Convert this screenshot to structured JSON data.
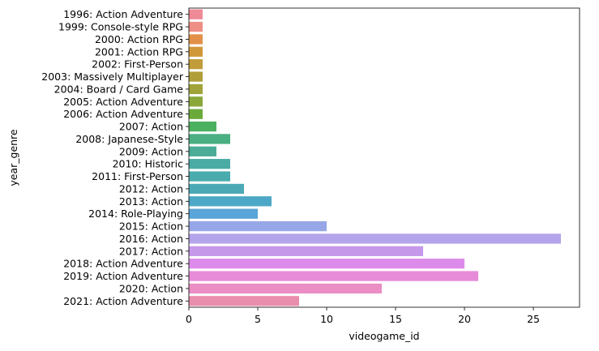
{
  "chart_data": {
    "type": "bar",
    "orientation": "horizontal",
    "title": "",
    "xlabel": "videogame_id",
    "ylabel": "year_genre",
    "xlim": [
      0,
      28.35
    ],
    "xticks": [
      0,
      5,
      10,
      15,
      20,
      25
    ],
    "grid": false,
    "legend": "none",
    "categories": [
      "1996: Action Adventure",
      "1999: Console-style RPG",
      "2000: Action RPG",
      "2001: Action RPG",
      "2002: First-Person",
      "2003: Massively Multiplayer",
      "2004: Board / Card Game",
      "2005: Action Adventure",
      "2006: Action Adventure",
      "2007: Action",
      "2008: Japanese-Style",
      "2009: Action",
      "2010: Historic",
      "2011: First-Person",
      "2012: Action",
      "2013: Action",
      "2014: Role-Playing",
      "2015: Action",
      "2016: Action",
      "2017: Action",
      "2018: Action Adventure",
      "2019: Action Adventure",
      "2020: Action",
      "2021: Action Adventure"
    ],
    "values": [
      1,
      1,
      1,
      1,
      1,
      1,
      1,
      1,
      1,
      2,
      3,
      2,
      3,
      3,
      4,
      6,
      5,
      10,
      27,
      17,
      20,
      21,
      14,
      8
    ],
    "colors": [
      "#ef8a97",
      "#ee8f86",
      "#e39149",
      "#d1983a",
      "#c09c3a",
      "#b09f39",
      "#a0a33a",
      "#8aa739",
      "#6aaa3b",
      "#4cb061",
      "#4baf84",
      "#4bad97",
      "#4aaba4",
      "#4aabad",
      "#4ba9b5",
      "#4ca8c6",
      "#59a4d8",
      "#97a6e6",
      "#b4a4ea",
      "#c698ea",
      "#dd8bea",
      "#e78bd9",
      "#eb8ec4",
      "#ea8eae"
    ]
  }
}
